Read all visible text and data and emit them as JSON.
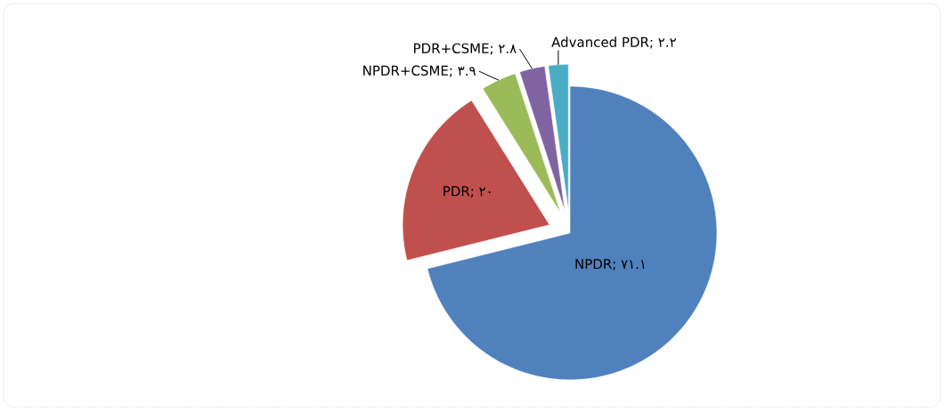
{
  "chart_data": {
    "type": "pie",
    "categories": [
      "NPDR",
      "PDR",
      "NPDR+CSME",
      "PDR+CSME",
      "Advanced PDR"
    ],
    "values": [
      71.1,
      20,
      3.9,
      2.8,
      2.2
    ],
    "value_labels": [
      "; ۷۱.۱",
      "; ۲۰",
      "; ۳.۹",
      "; ۲.۸",
      "; ۲.۲"
    ],
    "colors": [
      "#4f81bd",
      "#c0504d",
      "#9bbb59",
      "#8064a2",
      "#4bacc6"
    ]
  }
}
